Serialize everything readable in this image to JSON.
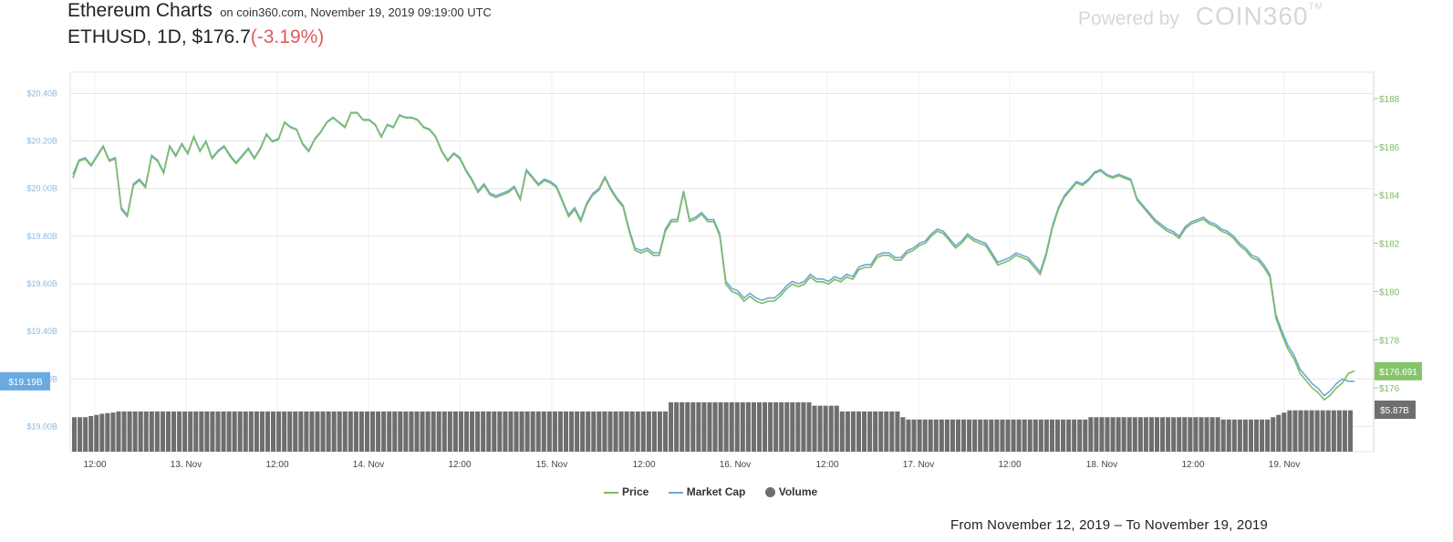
{
  "header": {
    "title": "Ethereum Charts",
    "subtitle": "on coin360.com, November 19, 2019 09:19:00 UTC",
    "pair": "ETHUSD, 1D, $176.7",
    "change": "(-3.19%)"
  },
  "branding": {
    "powered_by": "Powered by",
    "logo_text": "COIN360",
    "tm": "TM"
  },
  "legend": {
    "items": [
      {
        "label": "Price",
        "kind": "line",
        "color": "#7dbd62"
      },
      {
        "label": "Market Cap",
        "kind": "line",
        "color": "#6fa8d8"
      },
      {
        "label": "Volume",
        "kind": "dot",
        "color": "#6e6e6e"
      }
    ]
  },
  "date_range": "From November 12, 2019 – To November 19, 2019",
  "chart_data": {
    "type": "line",
    "x_tick_labels": [
      "12:00",
      "13. Nov",
      "12:00",
      "14. Nov",
      "12:00",
      "15. Nov",
      "12:00",
      "16. Nov",
      "12:00",
      "17. Nov",
      "12:00",
      "18. Nov",
      "12:00",
      "19. Nov"
    ],
    "y_left": {
      "ticks": [
        "$20.40B",
        "$20.20B",
        "$20.00B",
        "$19.80B",
        "$19.60B",
        "$19.40B",
        "$19.20B",
        "$19.00B"
      ],
      "ylim": [
        18.99,
        20.49
      ],
      "current_label": "$19.19B",
      "current_value": 19.19
    },
    "y_right": {
      "ticks": [
        "$188",
        "$186",
        "$184",
        "$182",
        "$180",
        "$178",
        "$176"
      ],
      "ylim": [
        174.3,
        189.1
      ],
      "current_label": "$176.691",
      "current_value": 176.691
    },
    "volume_label": "$5.87B",
    "series": [
      {
        "name": "Price",
        "color": "#7dbd62",
        "axis": "right",
        "values": [
          184.7,
          185.4,
          185.5,
          185.2,
          185.6,
          186.0,
          185.4,
          185.5,
          183.4,
          183.1,
          184.4,
          184.6,
          184.3,
          185.6,
          185.4,
          184.9,
          186.0,
          185.6,
          186.1,
          185.7,
          186.4,
          185.8,
          186.2,
          185.5,
          185.8,
          186.0,
          185.6,
          185.3,
          185.6,
          185.9,
          185.5,
          185.9,
          186.5,
          186.2,
          186.3,
          187.0,
          186.8,
          186.7,
          186.1,
          185.8,
          186.3,
          186.6,
          187.0,
          187.2,
          187.0,
          186.8,
          187.4,
          187.4,
          187.1,
          187.1,
          186.9,
          186.4,
          186.9,
          186.8,
          187.3,
          187.2,
          187.2,
          187.1,
          186.8,
          186.7,
          186.4,
          185.8,
          185.4,
          185.7,
          185.5,
          185.0,
          184.6,
          184.1,
          184.4,
          184.0,
          183.9,
          184.0,
          184.1,
          184.3,
          183.8,
          185.0,
          184.7,
          184.4,
          184.6,
          184.5,
          184.3,
          183.7,
          183.1,
          183.4,
          182.9,
          183.6,
          184.0,
          184.2,
          184.7,
          184.2,
          183.8,
          183.5,
          182.5,
          181.7,
          181.6,
          181.7,
          181.5,
          181.5,
          182.5,
          182.9,
          182.9,
          184.1,
          182.9,
          183.0,
          183.2,
          182.9,
          182.9,
          182.3,
          180.3,
          180.0,
          179.9,
          179.6,
          179.8,
          179.6,
          179.5,
          179.6,
          179.6,
          179.8,
          180.1,
          180.3,
          180.2,
          180.3,
          180.6,
          180.4,
          180.4,
          180.3,
          180.5,
          180.4,
          180.6,
          180.5,
          180.9,
          181.0,
          181.0,
          181.4,
          181.5,
          181.5,
          181.3,
          181.3,
          181.6,
          181.7,
          181.9,
          182.0,
          182.3,
          182.5,
          182.4,
          182.1,
          181.8,
          182.0,
          182.3,
          182.1,
          182.0,
          181.9,
          181.5,
          181.1,
          181.2,
          181.3,
          181.5,
          181.4,
          181.3,
          181.0,
          180.7,
          181.5,
          182.6,
          183.4,
          183.9,
          184.2,
          184.5,
          184.4,
          184.6,
          184.9,
          185.0,
          184.8,
          184.7,
          184.8,
          184.7,
          184.6,
          183.8,
          183.5,
          183.2,
          182.9,
          182.7,
          182.5,
          182.4,
          182.2,
          182.6,
          182.8,
          182.9,
          183.0,
          182.8,
          182.7,
          182.5,
          182.4,
          182.2,
          181.9,
          181.7,
          181.4,
          181.3,
          181.0,
          180.6,
          178.9,
          178.2,
          177.6,
          177.2,
          176.6,
          176.3,
          176.0,
          175.8,
          175.5,
          175.7,
          176.0,
          176.2,
          176.6,
          176.7
        ]
      },
      {
        "name": "Market Cap",
        "color": "#6fa8d8",
        "axis": "left",
        "values": [
          20.06,
          20.12,
          20.13,
          20.1,
          20.14,
          20.18,
          20.12,
          20.13,
          19.92,
          19.89,
          20.02,
          20.04,
          20.01,
          20.14,
          20.12,
          20.07,
          20.18,
          20.14,
          20.19,
          20.15,
          20.22,
          20.16,
          20.2,
          20.13,
          20.16,
          20.18,
          20.14,
          20.11,
          20.14,
          20.17,
          20.13,
          20.17,
          20.23,
          20.2,
          20.21,
          20.28,
          20.26,
          20.25,
          20.19,
          20.16,
          20.21,
          20.24,
          20.28,
          20.3,
          20.28,
          20.26,
          20.32,
          20.32,
          20.29,
          20.29,
          20.27,
          20.22,
          20.27,
          20.26,
          20.31,
          20.3,
          20.3,
          20.29,
          20.26,
          20.25,
          20.22,
          20.16,
          20.12,
          20.15,
          20.13,
          20.08,
          20.04,
          19.99,
          20.02,
          19.98,
          19.97,
          19.98,
          19.99,
          20.01,
          19.96,
          20.08,
          20.05,
          20.02,
          20.04,
          20.03,
          20.01,
          19.95,
          19.89,
          19.92,
          19.87,
          19.94,
          19.98,
          20.0,
          20.05,
          20.0,
          19.96,
          19.93,
          19.83,
          19.75,
          19.74,
          19.75,
          19.73,
          19.73,
          19.83,
          19.87,
          19.87,
          19.99,
          19.87,
          19.88,
          19.9,
          19.87,
          19.87,
          19.81,
          19.61,
          19.58,
          19.57,
          19.54,
          19.56,
          19.54,
          19.53,
          19.54,
          19.54,
          19.56,
          19.59,
          19.61,
          19.6,
          19.61,
          19.64,
          19.62,
          19.62,
          19.61,
          19.63,
          19.62,
          19.64,
          19.63,
          19.67,
          19.68,
          19.68,
          19.72,
          19.73,
          19.73,
          19.71,
          19.71,
          19.74,
          19.75,
          19.77,
          19.78,
          19.81,
          19.83,
          19.82,
          19.79,
          19.76,
          19.78,
          19.81,
          19.79,
          19.78,
          19.77,
          19.73,
          19.69,
          19.7,
          19.71,
          19.73,
          19.72,
          19.71,
          19.68,
          19.65,
          19.73,
          19.84,
          19.92,
          19.97,
          20.0,
          20.03,
          20.02,
          20.04,
          20.07,
          20.08,
          20.06,
          20.05,
          20.06,
          20.05,
          20.04,
          19.96,
          19.93,
          19.9,
          19.87,
          19.85,
          19.83,
          19.82,
          19.8,
          19.84,
          19.86,
          19.87,
          19.88,
          19.86,
          19.85,
          19.83,
          19.82,
          19.8,
          19.77,
          19.75,
          19.72,
          19.71,
          19.68,
          19.64,
          19.47,
          19.4,
          19.34,
          19.3,
          19.24,
          19.21,
          19.18,
          19.16,
          19.13,
          19.15,
          19.18,
          19.2,
          19.19,
          19.19
        ]
      }
    ],
    "volume_series": {
      "name": "Volume",
      "color": "#6e6e6e",
      "values_relative": [
        0.6,
        0.6,
        0.6,
        0.62,
        0.64,
        0.66,
        0.67,
        0.68,
        0.7,
        0.7,
        0.7,
        0.7,
        0.7,
        0.7,
        0.7,
        0.7,
        0.7,
        0.7,
        0.7,
        0.7,
        0.7,
        0.7,
        0.7,
        0.7,
        0.7,
        0.7,
        0.7,
        0.7,
        0.7,
        0.7,
        0.7,
        0.7,
        0.7,
        0.7,
        0.7,
        0.7,
        0.7,
        0.7,
        0.7,
        0.7,
        0.7,
        0.7,
        0.7,
        0.7,
        0.7,
        0.7,
        0.7,
        0.7,
        0.7,
        0.7,
        0.7,
        0.7,
        0.7,
        0.7,
        0.7,
        0.7,
        0.7,
        0.7,
        0.7,
        0.7,
        0.7,
        0.7,
        0.7,
        0.7,
        0.7,
        0.7,
        0.7,
        0.7,
        0.7,
        0.7,
        0.7,
        0.7,
        0.7,
        0.7,
        0.7,
        0.7,
        0.7,
        0.7,
        0.7,
        0.7,
        0.7,
        0.7,
        0.7,
        0.7,
        0.7,
        0.7,
        0.7,
        0.7,
        0.7,
        0.7,
        0.7,
        0.7,
        0.7,
        0.7,
        0.7,
        0.7,
        0.7,
        0.7,
        0.7,
        0.7,
        0.7,
        0.7,
        0.7,
        0.7,
        0.7,
        0.7,
        0.7,
        0.7,
        0.86,
        0.86,
        0.86,
        0.86,
        0.86,
        0.86,
        0.86,
        0.86,
        0.86,
        0.86,
        0.86,
        0.86,
        0.86,
        0.86,
        0.86,
        0.86,
        0.86,
        0.86,
        0.86,
        0.86,
        0.86,
        0.86,
        0.86,
        0.86,
        0.86,
        0.86,
        0.8,
        0.8,
        0.8,
        0.8,
        0.8,
        0.7,
        0.7,
        0.7,
        0.7,
        0.7,
        0.7,
        0.7,
        0.7,
        0.7,
        0.7,
        0.7,
        0.6,
        0.56,
        0.56,
        0.56,
        0.56,
        0.56,
        0.56,
        0.56,
        0.56,
        0.56,
        0.56,
        0.56,
        0.56,
        0.56,
        0.56,
        0.56,
        0.56,
        0.56,
        0.56,
        0.56,
        0.56,
        0.56,
        0.56,
        0.56,
        0.56,
        0.56,
        0.56,
        0.56,
        0.56,
        0.56,
        0.56,
        0.56,
        0.56,
        0.56,
        0.6,
        0.6,
        0.6,
        0.6,
        0.6,
        0.6,
        0.6,
        0.6,
        0.6,
        0.6,
        0.6,
        0.6,
        0.6,
        0.6,
        0.6,
        0.6,
        0.6,
        0.6,
        0.6,
        0.6,
        0.6,
        0.6,
        0.6,
        0.6,
        0.56,
        0.56,
        0.56,
        0.56,
        0.56,
        0.56,
        0.56,
        0.56,
        0.56,
        0.6,
        0.64,
        0.68,
        0.72,
        0.72,
        0.72,
        0.72,
        0.72,
        0.72,
        0.72,
        0.72,
        0.72,
        0.72,
        0.72,
        0.72
      ]
    }
  }
}
